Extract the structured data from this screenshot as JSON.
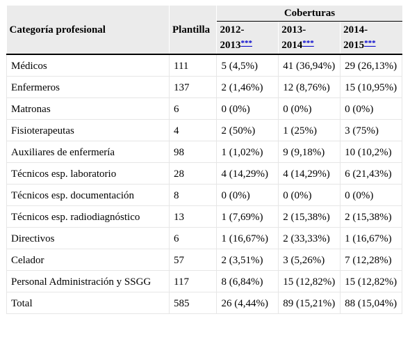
{
  "header": {
    "group_label": "Coberturas",
    "col_category": "Categoría profesional",
    "col_plantilla": "Plantilla",
    "col_years": [
      {
        "label": "2012-2013",
        "note": "***"
      },
      {
        "label": "2013-2014",
        "note": "***"
      },
      {
        "label": "2014-2015",
        "note": "***"
      }
    ]
  },
  "rows": [
    {
      "category": "Médicos",
      "plantilla": "111",
      "y1": "5 (4,5%)",
      "y2": "41 (36,94%)",
      "y3": "29 (26,13%)"
    },
    {
      "category": "Enfermeros",
      "plantilla": "137",
      "y1": "2 (1,46%)",
      "y2": "12 (8,76%)",
      "y3": "15 (10,95%)"
    },
    {
      "category": "Matronas",
      "plantilla": "6",
      "y1": "0 (0%)",
      "y2": "0 (0%)",
      "y3": "0 (0%)"
    },
    {
      "category": "Fisioterapeutas",
      "plantilla": "4",
      "y1": "2 (50%)",
      "y2": "1 (25%)",
      "y3": "3 (75%)"
    },
    {
      "category": "Auxiliares de enfermería",
      "plantilla": "98",
      "y1": "1 (1,02%)",
      "y2": "9 (9,18%)",
      "y3": "10 (10,2%)"
    },
    {
      "category": "Técnicos esp. laboratorio",
      "plantilla": "28",
      "y1": "4 (14,29%)",
      "y2": "4 (14,29%)",
      "y3": "6 (21,43%)"
    },
    {
      "category": "Técnicos esp. documentación",
      "plantilla": "8",
      "y1": "0 (0%)",
      "y2": "0 (0%)",
      "y3": "0 (0%)"
    },
    {
      "category": "Técnicos esp. radiodiagnóstico",
      "plantilla": "13",
      "y1": "1 (7,69%)",
      "y2": "2 (15,38%)",
      "y3": "2 (15,38%)"
    },
    {
      "category": "Directivos",
      "plantilla": "6",
      "y1": "1 (16,67%)",
      "y2": "2 (33,33%)",
      "y3": "1 (16,67%)"
    },
    {
      "category": "Celador",
      "plantilla": "57",
      "y1": "2 (3,51%)",
      "y2": "3 (5,26%)",
      "y3": "7 (12,28%)"
    },
    {
      "category": "Personal Administración y SSGG",
      "plantilla": "117",
      "y1": "8 (6,84%)",
      "y2": "15 (12,82%)",
      "y3": "15 (12,82%)"
    },
    {
      "category": "Total",
      "plantilla": "585",
      "y1": "26 (4,44%)",
      "y2": "89 (15,21%)",
      "y3": "88 (15,04%)"
    }
  ]
}
